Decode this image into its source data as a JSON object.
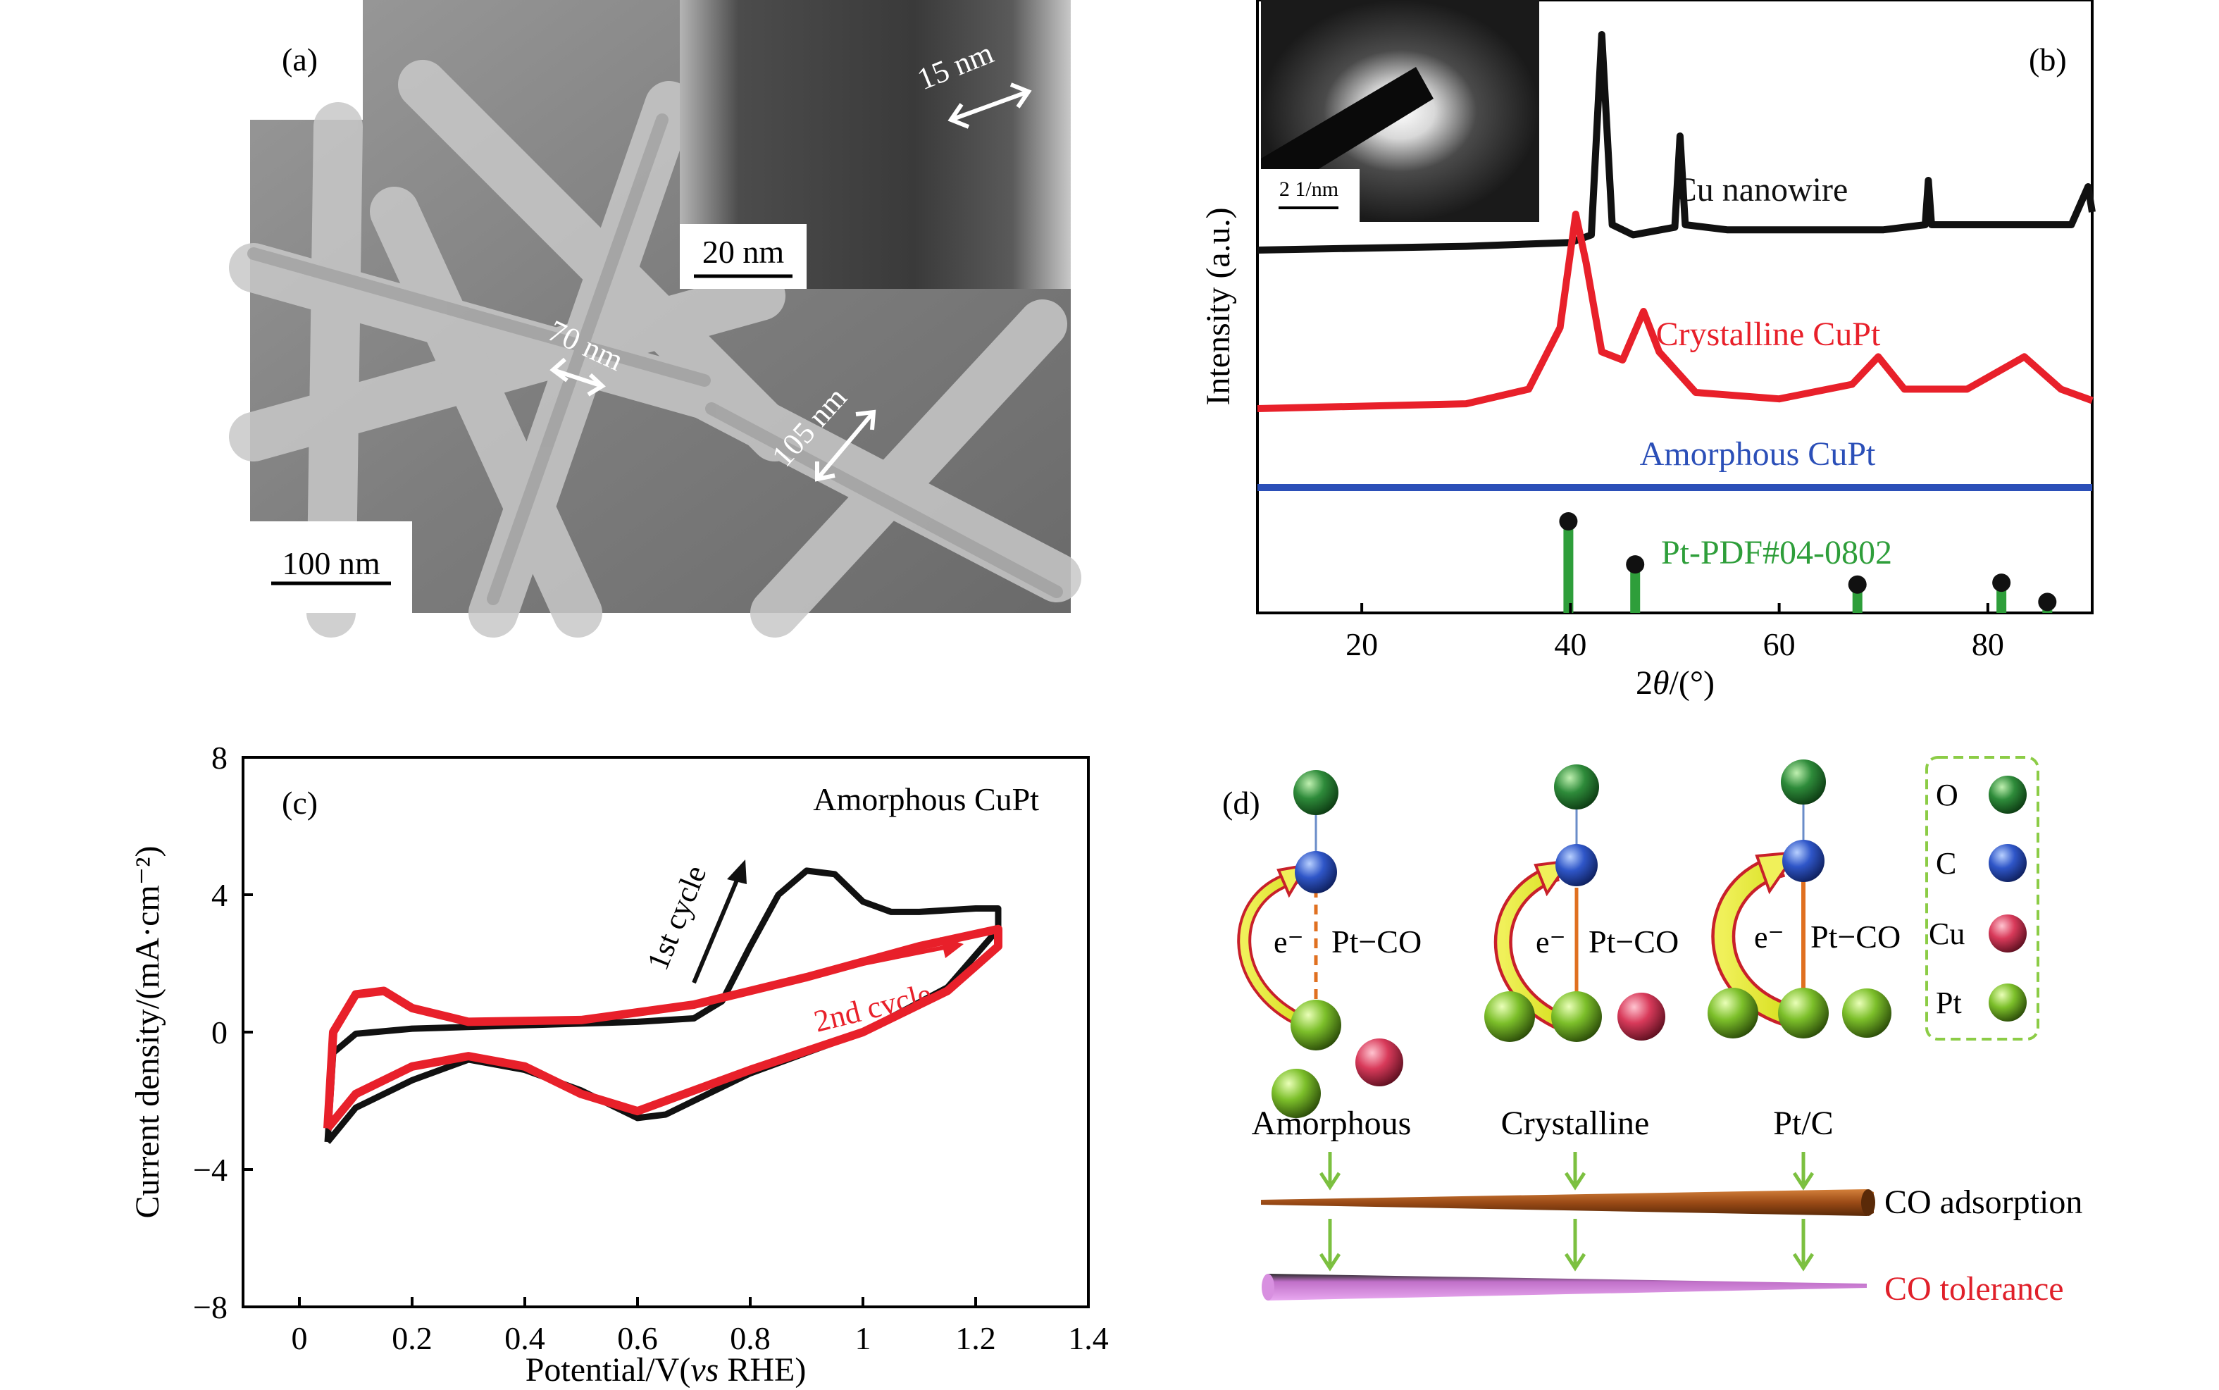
{
  "panel_a": {
    "label": "(a)",
    "sem_scalebar": "100 nm",
    "tem_scalebar": "20 nm",
    "measurements": [
      "15 nm",
      "70 nm",
      "105 nm"
    ]
  },
  "panel_b": {
    "label": "(b)",
    "saed_scalebar": "2 1/nm",
    "ylabel": "Intensity (a.u.)",
    "xlabel_prefix": "2",
    "xlabel_theta": "θ",
    "xlabel_suffix": "/(°)"
  },
  "panel_c": {
    "label": "(c)",
    "title": "Amorphous CuPt",
    "ylabel": "Current density/(mA·cm⁻²)",
    "xlabel_prefix": "Potential/V(",
    "xlabel_vs": "vs",
    "xlabel_suffix": " RHE)",
    "annotation_1st": "1st cycle",
    "annotation_2nd": "2nd cycle"
  },
  "panel_d": {
    "label": "(d)",
    "legend": [
      {
        "name": "O",
        "color": "#2e8b3a"
      },
      {
        "name": "C",
        "color": "#2f56c8"
      },
      {
        "name": "Cu",
        "color": "#d83a5a"
      },
      {
        "name": "Pt",
        "color": "#7cbf2a"
      }
    ],
    "electron_label": "e⁻",
    "bond_label": "Pt−CO",
    "categories": [
      "Amorphous",
      "Crystalline",
      "Pt/C"
    ],
    "trend_adsorption": "CO adsorption",
    "trend_tolerance": "CO tolerance",
    "tolerance_color": "#e0202a"
  },
  "chart_data": [
    {
      "type": "line",
      "panel": "(b)",
      "x_range": [
        10,
        90
      ],
      "xticks": [
        20,
        40,
        60,
        80
      ],
      "ylabel": "Intensity (a.u.)",
      "series": [
        {
          "name": "Cu nanowire",
          "color": "#111111",
          "points": [
            [
              10,
              1.0
            ],
            [
              30,
              1.03
            ],
            [
              40,
              1.06
            ],
            [
              42,
              1.12
            ],
            [
              43,
              2.7
            ],
            [
              44,
              1.2
            ],
            [
              46,
              1.12
            ],
            [
              50,
              1.18
            ],
            [
              50.5,
              1.9
            ],
            [
              51,
              1.2
            ],
            [
              55,
              1.16
            ],
            [
              70,
              1.16
            ],
            [
              74,
              1.2
            ],
            [
              74.3,
              1.55
            ],
            [
              74.6,
              1.2
            ],
            [
              88,
              1.2
            ],
            [
              89.6,
              1.5
            ],
            [
              90,
              1.3
            ]
          ]
        },
        {
          "name": "Crystalline CuPt",
          "color": "#e8202a",
          "points": [
            [
              10,
              0.0
            ],
            [
              30,
              0.03
            ],
            [
              36,
              0.12
            ],
            [
              39,
              0.5
            ],
            [
              40.5,
              1.2
            ],
            [
              41.5,
              0.9
            ],
            [
              43,
              0.35
            ],
            [
              45,
              0.3
            ],
            [
              47,
              0.6
            ],
            [
              48.5,
              0.35
            ],
            [
              52,
              0.1
            ],
            [
              60,
              0.06
            ],
            [
              67,
              0.15
            ],
            [
              69.5,
              0.32
            ],
            [
              72,
              0.12
            ],
            [
              78,
              0.12
            ],
            [
              83.5,
              0.32
            ],
            [
              87,
              0.12
            ],
            [
              90,
              0.05
            ]
          ]
        },
        {
          "name": "Amorphous CuPt",
          "color": "#2b4fb8",
          "points": [
            [
              10,
              0.0
            ],
            [
              90,
              0.0
            ]
          ]
        }
      ],
      "reference": {
        "name": "Pt-PDF#04-0802",
        "color": "#2e9e3a",
        "peaks": [
          [
            39.8,
            100
          ],
          [
            46.2,
            53
          ],
          [
            67.5,
            31
          ],
          [
            81.3,
            33
          ],
          [
            85.7,
            12
          ]
        ]
      }
    },
    {
      "type": "line",
      "panel": "(c)",
      "title": "Amorphous CuPt",
      "xlabel": "Potential/V(vs RHE)",
      "ylabel": "Current density/(mA·cm⁻²)",
      "xlim": [
        -0.1,
        1.4
      ],
      "ylim": [
        -8,
        8
      ],
      "xticks": [
        0,
        0.2,
        0.4,
        0.6,
        0.8,
        1.0,
        1.2,
        1.4
      ],
      "yticks": [
        -8,
        -4,
        0,
        4,
        8
      ],
      "series": [
        {
          "name": "1st cycle",
          "color": "#111111",
          "points": [
            [
              0.05,
              -3.2
            ],
            [
              0.06,
              -0.6
            ],
            [
              0.1,
              -0.05
            ],
            [
              0.2,
              0.1
            ],
            [
              0.4,
              0.2
            ],
            [
              0.6,
              0.3
            ],
            [
              0.7,
              0.4
            ],
            [
              0.75,
              0.9
            ],
            [
              0.8,
              2.5
            ],
            [
              0.85,
              4.0
            ],
            [
              0.9,
              4.7
            ],
            [
              0.95,
              4.6
            ],
            [
              1.0,
              3.8
            ],
            [
              1.05,
              3.5
            ],
            [
              1.1,
              3.5
            ],
            [
              1.2,
              3.6
            ],
            [
              1.24,
              3.6
            ],
            [
              1.24,
              3.0
            ],
            [
              1.15,
              1.3
            ],
            [
              1.0,
              0.0
            ],
            [
              0.8,
              -1.2
            ],
            [
              0.65,
              -2.4
            ],
            [
              0.6,
              -2.5
            ],
            [
              0.5,
              -1.7
            ],
            [
              0.4,
              -1.1
            ],
            [
              0.3,
              -0.8
            ],
            [
              0.2,
              -1.4
            ],
            [
              0.1,
              -2.2
            ],
            [
              0.05,
              -3.2
            ]
          ]
        },
        {
          "name": "2nd cycle",
          "color": "#e8202a",
          "points": [
            [
              0.05,
              -2.8
            ],
            [
              0.06,
              0.0
            ],
            [
              0.1,
              1.1
            ],
            [
              0.15,
              1.2
            ],
            [
              0.2,
              0.7
            ],
            [
              0.3,
              0.3
            ],
            [
              0.5,
              0.35
            ],
            [
              0.7,
              0.8
            ],
            [
              0.9,
              1.6
            ],
            [
              1.1,
              2.5
            ],
            [
              1.24,
              3.0
            ],
            [
              1.24,
              2.5
            ],
            [
              1.15,
              1.2
            ],
            [
              1.0,
              0.0
            ],
            [
              0.8,
              -1.1
            ],
            [
              0.6,
              -2.3
            ],
            [
              0.5,
              -1.8
            ],
            [
              0.4,
              -1.0
            ],
            [
              0.3,
              -0.7
            ],
            [
              0.2,
              -1.0
            ],
            [
              0.1,
              -1.8
            ],
            [
              0.05,
              -2.8
            ]
          ]
        }
      ]
    }
  ]
}
